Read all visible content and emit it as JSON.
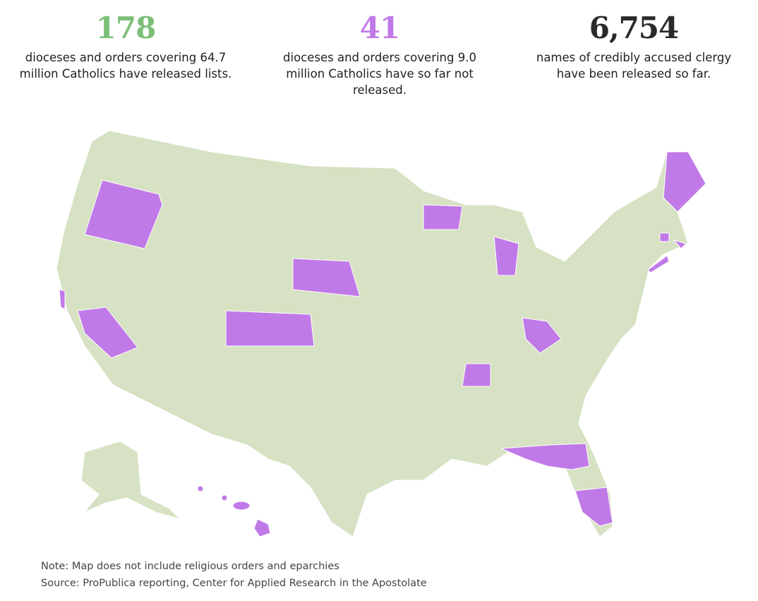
{
  "stats": [
    {
      "number": "178",
      "text": "dioceses and orders covering 64.7 million Catholics have released lists."
    },
    {
      "number": "41",
      "text": "dioceses and orders covering 9.0 million Catholics have so far not released."
    },
    {
      "number": "6,754",
      "text": "names of credibly accused clergy have been released so far."
    }
  ],
  "footer": {
    "note": "Note: Map does not include religious orders and eparchies",
    "source": "Source: ProPublica reporting, Center for Applied Research in the Apostolate"
  }
}
